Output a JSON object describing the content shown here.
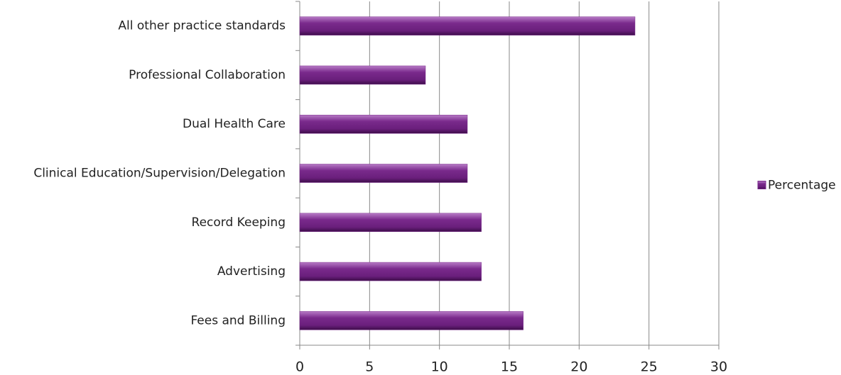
{
  "chart_data": {
    "type": "bar",
    "orientation": "horizontal",
    "categories": [
      "All other practice standards",
      "Professional Collaboration",
      "Dual Health Care",
      "Clinical Education/Supervision/Delegation",
      "Record Keeping",
      "Advertising",
      "Fees and Billing"
    ],
    "series": [
      {
        "name": "Percentage",
        "color": "#7a2a8c",
        "values": [
          24,
          9,
          12,
          12,
          13,
          13,
          16
        ]
      }
    ],
    "xlim": [
      0,
      30
    ],
    "xticks": [
      0,
      5,
      10,
      15,
      20,
      25,
      30
    ],
    "grid": true,
    "legend": "right"
  }
}
